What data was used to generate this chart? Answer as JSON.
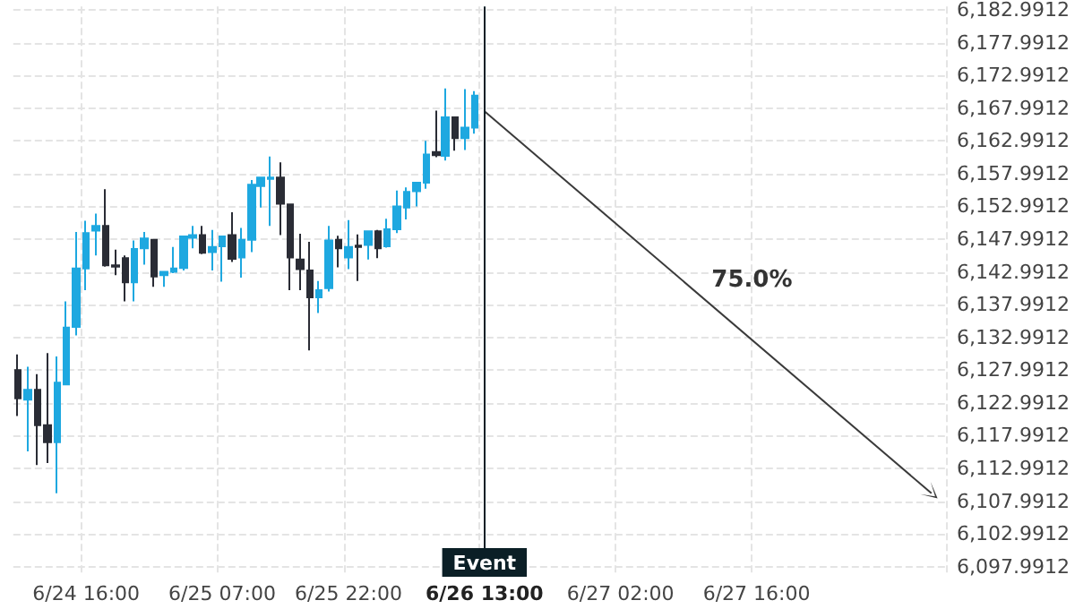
{
  "chart_data": {
    "type": "candlestick",
    "categories": [
      null,
      null,
      null,
      null,
      null,
      null,
      null,
      "6/24 16:00",
      null,
      null,
      null,
      null,
      null,
      null,
      null,
      null,
      null,
      null,
      null,
      null,
      null,
      "6/25 07:00",
      null,
      null,
      null,
      null,
      null,
      null,
      null,
      null,
      null,
      null,
      null,
      null,
      "6/25 22:00",
      null,
      null,
      null,
      null,
      null,
      null,
      null,
      null,
      null,
      null,
      null,
      null,
      null,
      "6/26 13:00",
      null,
      null,
      null,
      null,
      null,
      null,
      null,
      null,
      null,
      null,
      null,
      null,
      null,
      "6/27 02:00",
      null,
      null,
      null,
      null,
      null,
      null,
      null,
      null,
      null,
      null,
      null,
      null,
      null,
      "6/27 16:00",
      null,
      null,
      null,
      null,
      null,
      null,
      null,
      null,
      null,
      null,
      null,
      null,
      null,
      null,
      null,
      null,
      null,
      null,
      null
    ],
    "ohlc": [
      [
        6128.0,
        6130.4,
        6121.0,
        6123.7
      ],
      [
        6123.5,
        6128.5,
        6115.6,
        6125.0
      ],
      [
        6125.0,
        6127.4,
        6113.5,
        6119.6
      ],
      [
        6119.6,
        6130.6,
        6113.8,
        6117.0
      ],
      [
        6117.0,
        6130.1,
        6109.2,
        6126.1
      ],
      [
        6125.8,
        6138.5,
        6125.8,
        6134.5
      ],
      [
        6134.6,
        6149.1,
        6133.3,
        6143.5
      ],
      [
        6143.5,
        6150.8,
        6140.2,
        6148.9
      ],
      [
        6149.3,
        6151.9,
        6145.5,
        6150.0
      ],
      [
        6150.0,
        6155.6,
        6143.8,
        6144.0
      ],
      [
        6144.0,
        6146.4,
        6142.5,
        6143.8
      ],
      [
        6145.1,
        6145.5,
        6138.5,
        6141.4
      ],
      [
        6141.4,
        6147.8,
        6138.5,
        6146.5
      ],
      [
        6146.6,
        6149.1,
        6144.1,
        6148.1
      ],
      [
        6147.9,
        6147.9,
        6140.7,
        6142.3
      ],
      [
        6142.5,
        6143.0,
        6140.7,
        6143.0
      ],
      [
        6143.0,
        6146.8,
        6142.8,
        6143.5
      ],
      [
        6143.6,
        6148.4,
        6143.2,
        6148.4
      ],
      [
        6148.2,
        6150.0,
        6146.6,
        6148.6
      ],
      [
        6148.6,
        6150.0,
        6145.7,
        6145.9
      ],
      [
        6146.0,
        6149.4,
        6143.2,
        6146.8
      ],
      [
        6146.9,
        6148.4,
        6141.5,
        6148.4
      ],
      [
        6148.6,
        6152.1,
        6144.5,
        6145.0
      ],
      [
        6145.2,
        6149.7,
        6142.1,
        6147.9
      ],
      [
        6147.9,
        6157.0,
        6146.0,
        6156.3
      ],
      [
        6156.1,
        6157.4,
        6152.8,
        6157.4
      ],
      [
        6157.2,
        6160.6,
        6150.0,
        6157.4
      ],
      [
        6157.4,
        6159.7,
        6148.6,
        6153.4
      ],
      [
        6153.3,
        6153.3,
        6140.2,
        6145.2
      ],
      [
        6144.9,
        6148.8,
        6140.2,
        6143.4
      ],
      [
        6143.2,
        6147.6,
        6131.0,
        6139.1
      ],
      [
        6139.1,
        6141.6,
        6136.7,
        6140.2
      ],
      [
        6140.5,
        6150.0,
        6140.0,
        6147.8
      ],
      [
        6147.9,
        6148.5,
        6143.7,
        6146.6
      ],
      [
        6145.2,
        6150.9,
        6143.4,
        6146.8
      ],
      [
        6147.0,
        6148.7,
        6141.6,
        6146.8
      ],
      [
        6147.1,
        6149.2,
        6144.9,
        6149.2
      ],
      [
        6149.2,
        6149.4,
        6145.1,
        6146.6
      ],
      [
        6146.9,
        6151.1,
        6146.7,
        6149.5
      ],
      [
        6149.5,
        6155.4,
        6148.9,
        6153.0
      ],
      [
        6152.8,
        6155.9,
        6151.0,
        6155.2
      ],
      [
        6155.3,
        6156.6,
        6153.0,
        6156.6
      ],
      [
        6156.6,
        6163.0,
        6155.7,
        6160.9
      ],
      [
        6161.3,
        6167.6,
        6160.5,
        6160.8
      ],
      [
        6160.7,
        6171.0,
        6160.0,
        6166.6
      ],
      [
        6166.6,
        6166.6,
        6161.5,
        6163.4
      ],
      [
        6163.4,
        6170.9,
        6161.6,
        6165.0
      ],
      [
        6165.0,
        6170.6,
        6164.1,
        6169.9
      ],
      null,
      null,
      null,
      null,
      null,
      null,
      null,
      null,
      null,
      null,
      null,
      null,
      null,
      null,
      null,
      null,
      null,
      null,
      null,
      null,
      null,
      null,
      null,
      null,
      null,
      null,
      null,
      null,
      null,
      null,
      null,
      null,
      null,
      null,
      null,
      null,
      null,
      null,
      null,
      null,
      null,
      null,
      null,
      null,
      null,
      null,
      null,
      null
    ],
    "colors": [
      "#2a2c35",
      "#1ea8e0",
      "#2a2c35",
      "#2a2c35",
      "#1ea8e0",
      "#1ea8e0",
      "#1ea8e0",
      "#1ea8e0",
      "#1ea8e0",
      "#2a2c35",
      "#2a2c35",
      "#2a2c35",
      "#1ea8e0",
      "#1ea8e0",
      "#2a2c35",
      "#1ea8e0",
      "#1ea8e0",
      "#1ea8e0",
      "#1ea8e0",
      "#2a2c35",
      "#1ea8e0",
      "#1ea8e0",
      "#2a2c35",
      "#1ea8e0",
      "#1ea8e0",
      "#1ea8e0",
      "#1ea8e0",
      "#2a2c35",
      "#2a2c35",
      "#2a2c35",
      "#2a2c35",
      "#1ea8e0",
      "#1ea8e0",
      "#2a2c35",
      "#1ea8e0",
      "#2a2c35",
      "#1ea8e0",
      "#2a2c35",
      "#1ea8e0",
      "#1ea8e0",
      "#1ea8e0",
      "#1ea8e0",
      "#1ea8e0",
      "#2a2c35",
      "#1ea8e0",
      "#2a2c35",
      "#1ea8e0",
      "#1ea8e0",
      null,
      null,
      null,
      null,
      null,
      null,
      null,
      null,
      null,
      null,
      null,
      null,
      null,
      null,
      null,
      null,
      null,
      null,
      null,
      null,
      null,
      null,
      null,
      null,
      null,
      null,
      null,
      null,
      null,
      null,
      null,
      null,
      null,
      null,
      null,
      null,
      null,
      null,
      null,
      null,
      null,
      null,
      null,
      null,
      null,
      null,
      null,
      null
    ],
    "series": [
      {
        "type": "line",
        "color": "#3a3a3a",
        "values": [
          null,
          null,
          null,
          null,
          null,
          null,
          null,
          null,
          null,
          null,
          null,
          null,
          null,
          null,
          null,
          null,
          null,
          null,
          null,
          null,
          null,
          null,
          null,
          null,
          null,
          null,
          null,
          null,
          null,
          null,
          null,
          null,
          null,
          null,
          null,
          null,
          null,
          null,
          null,
          null,
          null,
          null,
          null,
          null,
          null,
          null,
          null,
          null,
          6167.5,
          null,
          null,
          null,
          null,
          null,
          null,
          null,
          null,
          null,
          null,
          null,
          null,
          null,
          null,
          null,
          null,
          null,
          null,
          null,
          null,
          null,
          null,
          null,
          null,
          null,
          null,
          null,
          null,
          null,
          null,
          null,
          null,
          null,
          null,
          null,
          null,
          null,
          null,
          null,
          null,
          null,
          null,
          null,
          null,
          null,
          6109.2,
          null
        ]
      }
    ],
    "ylim": [
      6097.0,
      6183.5
    ],
    "yticks": [
      {
        "value": 6097.9912,
        "label": "6,097.9912"
      },
      {
        "value": 6102.9912,
        "label": "6,102.9912"
      },
      {
        "value": 6107.9912,
        "label": "6,107.9912"
      },
      {
        "value": 6112.9912,
        "label": "6,112.9912"
      },
      {
        "value": 6117.9912,
        "label": "6,117.9912"
      },
      {
        "value": 6122.9912,
        "label": "6,122.9912"
      },
      {
        "value": 6127.9912,
        "label": "6,127.9912"
      },
      {
        "value": 6132.9912,
        "label": "6,132.9912"
      },
      {
        "value": 6137.9912,
        "label": "6,137.9912"
      },
      {
        "value": 6142.9912,
        "label": "6,142.9912"
      },
      {
        "value": 6147.9912,
        "label": "6,147.9912"
      },
      {
        "value": 6152.9912,
        "label": "6,152.9912"
      },
      {
        "value": 6157.9912,
        "label": "6,157.9912"
      },
      {
        "value": 6162.9912,
        "label": "6,162.9912"
      },
      {
        "value": 6167.9912,
        "label": "6,167.9912"
      },
      {
        "value": 6172.9912,
        "label": "6,172.9912"
      },
      {
        "value": 6177.9912,
        "label": "6,177.9912"
      },
      {
        "value": 6182.9912,
        "label": "6,182.9912"
      }
    ],
    "ref_lines": [
      {
        "axis": "x",
        "value": "6/26 13:00",
        "label": "Event",
        "color": "#0b1f26"
      }
    ],
    "annotations": [
      "75.0%"
    ],
    "grid": true
  }
}
